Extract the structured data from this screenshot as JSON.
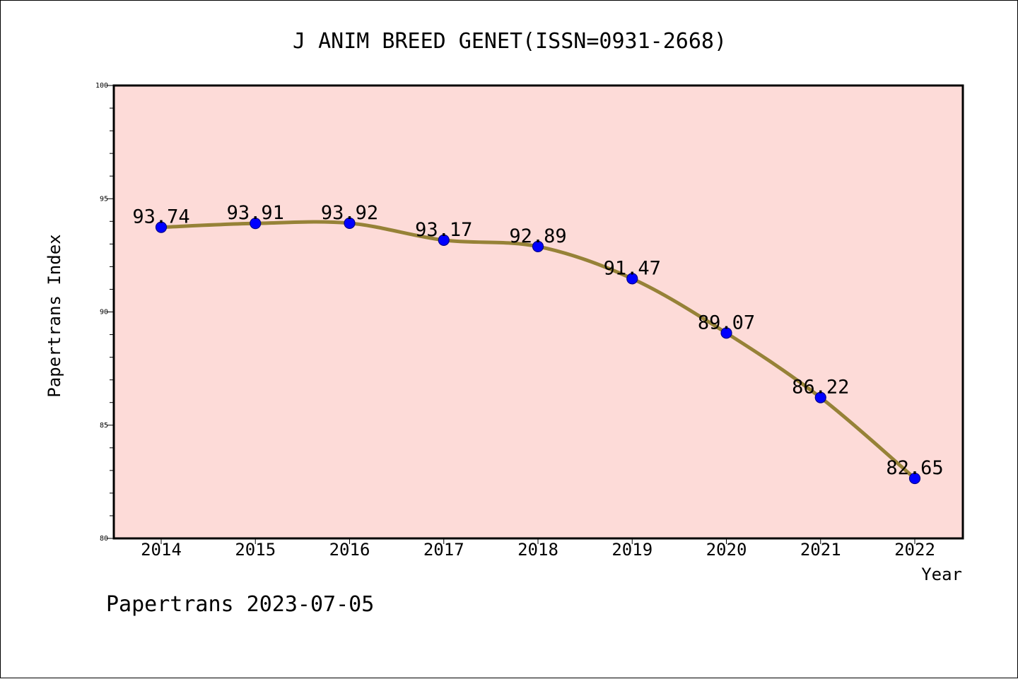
{
  "chart_data": {
    "type": "line",
    "title": "J ANIM BREED GENET(ISSN=0931-2668)",
    "xlabel": "Year",
    "ylabel": "Papertrans Index",
    "x": [
      "2014",
      "2015",
      "2016",
      "2017",
      "2018",
      "2019",
      "2020",
      "2021",
      "2022"
    ],
    "values": [
      93.74,
      93.91,
      93.92,
      93.17,
      92.89,
      91.47,
      89.07,
      86.22,
      82.65
    ],
    "data_labels": [
      "93.74",
      "93.91",
      "93.92",
      "93.17",
      "92.89",
      "91.47",
      "89.07",
      "86.22",
      "82.65"
    ],
    "ylim": [
      80,
      100
    ],
    "y_ticks": [
      "80",
      "85",
      "90",
      "95",
      "100"
    ],
    "grid": false,
    "legend": false,
    "colors": {
      "plot_background": "#fddbd8",
      "line": "#968237",
      "marker": "#0000ff",
      "marker_edge": "#00008b",
      "axis": "#000000",
      "text": "#000000"
    }
  },
  "footer": {
    "watermark": "Papertrans 2023-07-05"
  }
}
